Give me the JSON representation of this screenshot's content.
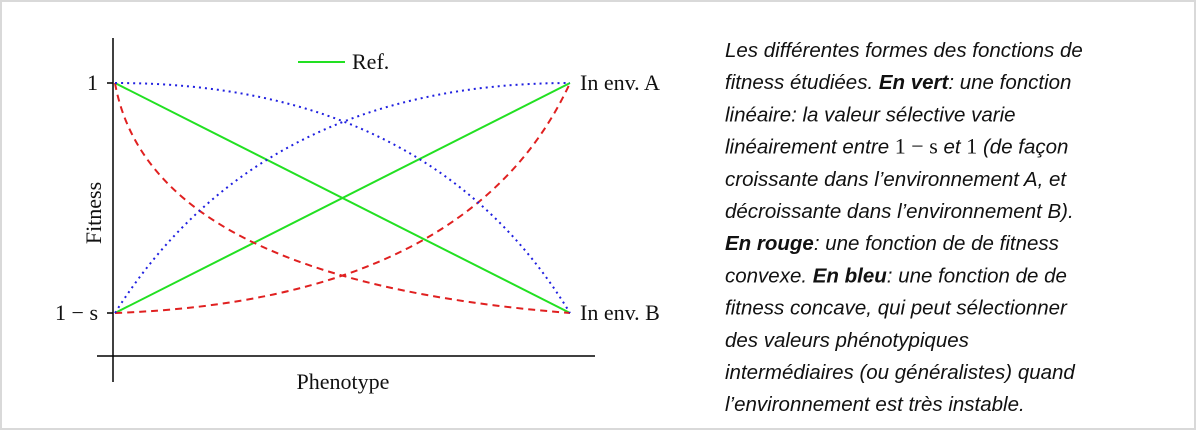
{
  "figure": {
    "y_axis_label": "Fitness",
    "x_axis_label": "Phenotype",
    "y_ticks": [
      "1",
      "1 − s"
    ],
    "legend": "Ref.",
    "curve_labels": [
      "In env. A",
      "In env. B"
    ]
  },
  "caption": {
    "lines": [
      [
        {
          "text": "Les différentes formes des fonctions de"
        }
      ],
      [
        {
          "text": "fitness étudiées. "
        },
        {
          "text": "En vert",
          "bold": true
        },
        {
          "text": ": une fonction"
        }
      ],
      [
        {
          "text": "linéaire: la valeur sélective varie"
        }
      ],
      [
        {
          "text": "linéairement entre "
        },
        {
          "text": "1 − s",
          "math": true
        },
        {
          "text": " et "
        },
        {
          "text": "1",
          "math": true
        },
        {
          "text": " (de façon"
        }
      ],
      [
        {
          "text": "croissante dans l’environnement A, et"
        }
      ],
      [
        {
          "text": "décroissante dans l’environnement B)."
        }
      ],
      [
        {
          "text": "En rouge",
          "bold": true
        },
        {
          "text": ": une fonction de de fitness"
        }
      ],
      [
        {
          "text": "convexe. "
        },
        {
          "text": "En bleu",
          "bold": true
        },
        {
          "text": ": une fonction de de"
        }
      ],
      [
        {
          "text": "fitness concave, qui peut sélectionner"
        }
      ],
      [
        {
          "text": "des valeurs phénotypiques"
        }
      ],
      [
        {
          "text": "intermédiaires (ou généralistes) quand"
        }
      ],
      [
        {
          "text": "l’environnement est très instable."
        }
      ]
    ]
  }
}
